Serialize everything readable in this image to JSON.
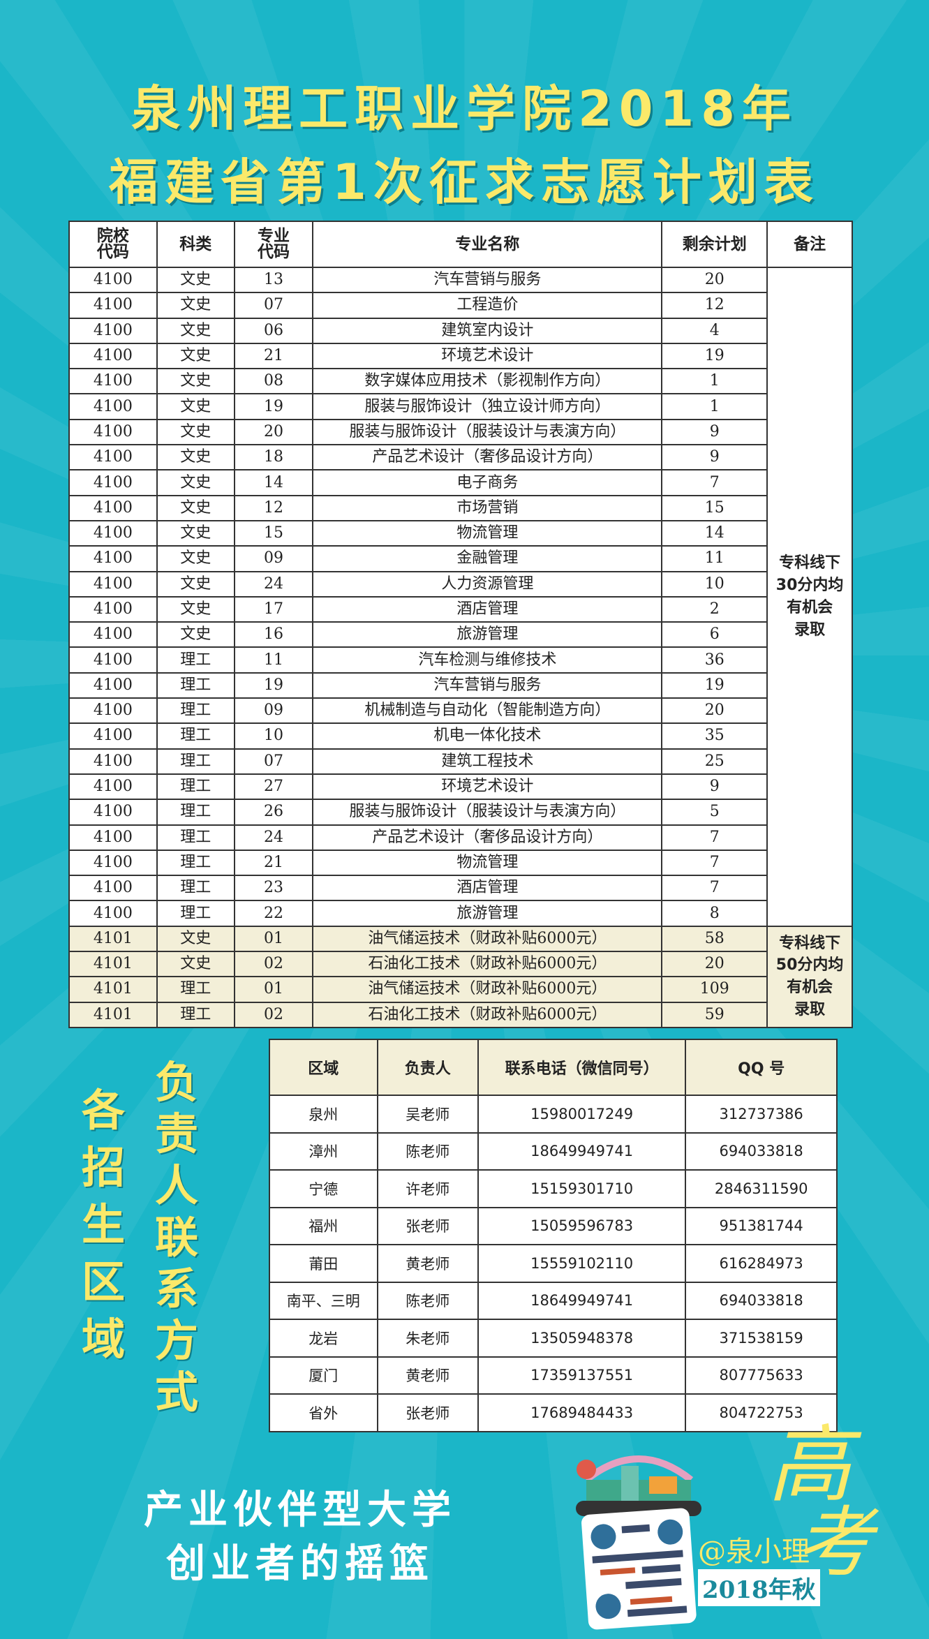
{
  "title": {
    "line1": "泉州理工职业学院2018年",
    "line2": "福建省第1次征求志愿计划表"
  },
  "plan": {
    "headers": [
      "院校\n代码",
      "科类",
      "专业\n代码",
      "专业名称",
      "剩余计划",
      "备注"
    ],
    "rows": [
      [
        "4100",
        "文史",
        "13",
        "汽车营销与服务",
        "20"
      ],
      [
        "4100",
        "文史",
        "07",
        "工程造价",
        "12"
      ],
      [
        "4100",
        "文史",
        "06",
        "建筑室内设计",
        "4"
      ],
      [
        "4100",
        "文史",
        "21",
        "环境艺术设计",
        "19"
      ],
      [
        "4100",
        "文史",
        "08",
        "数字媒体应用技术（影视制作方向）",
        "1"
      ],
      [
        "4100",
        "文史",
        "19",
        "服装与服饰设计（独立设计师方向）",
        "1"
      ],
      [
        "4100",
        "文史",
        "20",
        "服装与服饰设计（服装设计与表演方向）",
        "9"
      ],
      [
        "4100",
        "文史",
        "18",
        "产品艺术设计（奢侈品设计方向）",
        "9"
      ],
      [
        "4100",
        "文史",
        "14",
        "电子商务",
        "7"
      ],
      [
        "4100",
        "文史",
        "12",
        "市场营销",
        "15"
      ],
      [
        "4100",
        "文史",
        "15",
        "物流管理",
        "14"
      ],
      [
        "4100",
        "文史",
        "09",
        "金融管理",
        "11"
      ],
      [
        "4100",
        "文史",
        "24",
        "人力资源管理",
        "10"
      ],
      [
        "4100",
        "文史",
        "17",
        "酒店管理",
        "2"
      ],
      [
        "4100",
        "文史",
        "16",
        "旅游管理",
        "6"
      ],
      [
        "4100",
        "理工",
        "11",
        "汽车检测与维修技术",
        "36"
      ],
      [
        "4100",
        "理工",
        "19",
        "汽车营销与服务",
        "19"
      ],
      [
        "4100",
        "理工",
        "09",
        "机械制造与自动化（智能制造方向）",
        "20"
      ],
      [
        "4100",
        "理工",
        "10",
        "机电一体化技术",
        "35"
      ],
      [
        "4100",
        "理工",
        "07",
        "建筑工程技术",
        "25"
      ],
      [
        "4100",
        "理工",
        "27",
        "环境艺术设计",
        "9"
      ],
      [
        "4100",
        "理工",
        "26",
        "服装与服饰设计（服装设计与表演方向）",
        "5"
      ],
      [
        "4100",
        "理工",
        "24",
        "产品艺术设计（奢侈品设计方向）",
        "7"
      ],
      [
        "4100",
        "理工",
        "21",
        "物流管理",
        "7"
      ],
      [
        "4100",
        "理工",
        "23",
        "酒店管理",
        "7"
      ],
      [
        "4100",
        "理工",
        "22",
        "旅游管理",
        "8"
      ],
      [
        "4101",
        "文史",
        "01",
        "油气储运技术（财政补贴6000元）",
        "58"
      ],
      [
        "4101",
        "文史",
        "02",
        "石油化工技术（财政补贴6000元）",
        "20"
      ],
      [
        "4101",
        "理工",
        "01",
        "油气储运技术（财政补贴6000元）",
        "109"
      ],
      [
        "4101",
        "理工",
        "02",
        "石油化工技术（财政补贴6000元）",
        "59"
      ]
    ],
    "notes": [
      {
        "text": "专科线下\n30分内均\n有机会\n录取",
        "rows": 26
      },
      {
        "text": "专科线下\n50分内均\n有机会\n录取",
        "rows": 4
      }
    ]
  },
  "contacts": {
    "headers": [
      "区域",
      "负责人",
      "联系电话（微信同号）",
      "QQ 号"
    ],
    "rows": [
      [
        "泉州",
        "吴老师",
        "15980017249",
        "312737386"
      ],
      [
        "漳州",
        "陈老师",
        "18649949741",
        "694033818"
      ],
      [
        "宁德",
        "许老师",
        "15159301710",
        "2846311590"
      ],
      [
        "福州",
        "张老师",
        "15059596783",
        "951381744"
      ],
      [
        "莆田",
        "黄老师",
        "15559102110",
        "616284973"
      ],
      [
        "南平、三明",
        "陈老师",
        "18649949741",
        "694033818"
      ],
      [
        "龙岩",
        "朱老师",
        "13505948378",
        "371538159"
      ],
      [
        "厦门",
        "黄老师",
        "17359137551",
        "807775633"
      ],
      [
        "省外",
        "张老师",
        "17689484433",
        "804722753"
      ]
    ]
  },
  "side_text": {
    "col1": "各招生区域",
    "col2": "负责人联系方式"
  },
  "slogan": {
    "line1": "产业伙伴型大学",
    "line2": "创业者的摇篮"
  },
  "promo": {
    "gaokao": "高考",
    "handle": "@泉小理",
    "season": "2018年秋",
    "qr_icon": "qr-code"
  },
  "colors": {
    "background": "#1bb6c8",
    "title": "#fbe96a",
    "highlight_row": "#f3efd8"
  }
}
